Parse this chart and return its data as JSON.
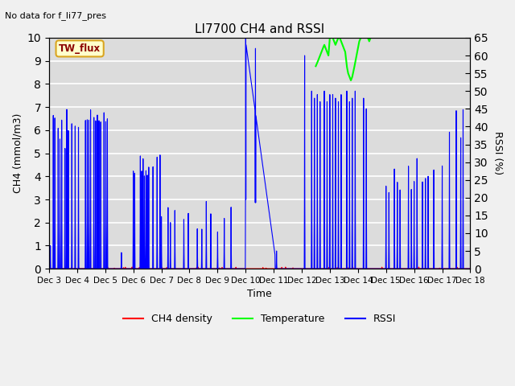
{
  "title": "LI7700 CH4 and RSSI",
  "top_left_text": "No data for f_li77_pres",
  "xlabel": "Time",
  "ylabel_left": "CH4 (mmol/m3)",
  "ylabel_right": "RSSI (%)",
  "annotation": "TW_flux",
  "ylim_left": [
    0.0,
    10.0
  ],
  "ylim_right": [
    0,
    65
  ],
  "yticks_left": [
    0.0,
    1.0,
    2.0,
    3.0,
    4.0,
    5.0,
    6.0,
    7.0,
    8.0,
    9.0,
    10.0
  ],
  "yticks_right": [
    0,
    5,
    10,
    15,
    20,
    25,
    30,
    35,
    40,
    45,
    50,
    55,
    60,
    65
  ],
  "xtick_labels": [
    "Dec 3",
    "Dec 4",
    "Dec 5",
    "Dec 6",
    "Dec 7",
    "Dec 8",
    "Dec 9",
    "Dec 10",
    "Dec 11",
    "Dec 12",
    "Dec 13",
    "Dec 14",
    "Dec 15",
    "Dec 16",
    "Dec 17",
    "Dec 18"
  ],
  "bg_color": "#dcdcdc",
  "grid_color": "#ffffff",
  "ch4_color": "#ff0000",
  "temp_color": "#00ff00",
  "rssi_color": "#0000ff",
  "fig_bg": "#f0f0f0",
  "n_days": 15,
  "rssi_scale": 10.0,
  "rssi_max_pct": 65.0
}
